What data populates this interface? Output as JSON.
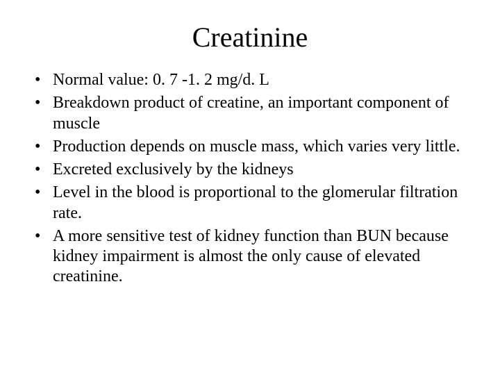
{
  "slide": {
    "title": "Creatinine",
    "title_fontsize": 40,
    "body_fontsize": 24,
    "background_color": "#ffffff",
    "text_color": "#000000",
    "font_family": "Times New Roman",
    "bullets": [
      "Normal value: 0. 7 -1. 2 mg/d. L",
      "Breakdown product of creatine, an important component of muscle",
      "Production depends on muscle mass, which varies very little.",
      "Excreted exclusively by the kidneys",
      "Level in the blood is proportional to the glomerular filtration rate.",
      "A more sensitive test of kidney function than BUN because kidney impairment is almost the only cause of elevated creatinine."
    ]
  }
}
